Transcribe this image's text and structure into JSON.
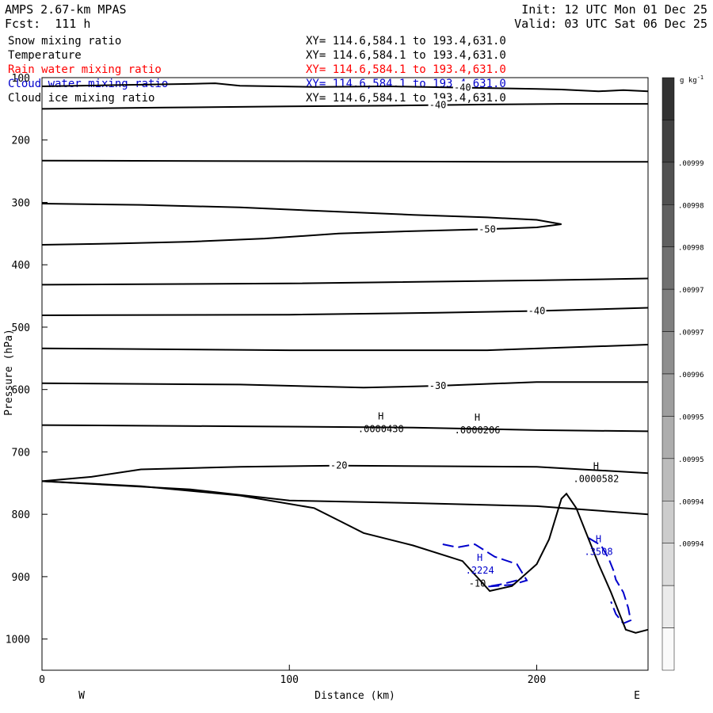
{
  "header": {
    "title": "AMPS 2.67-km MPAS",
    "forecast": "Fcst:  111 h",
    "init": "Init: 12 UTC Mon 01 Dec 25",
    "valid": "Valid: 03 UTC Sat 06 Dec 25"
  },
  "legend": [
    {
      "label": "Snow mixing ratio",
      "xy": "XY= 114.6,584.1 to 193.4,631.0",
      "color": "#000000"
    },
    {
      "label": "Temperature",
      "xy": "XY= 114.6,584.1 to 193.4,631.0",
      "color": "#000000"
    },
    {
      "label": "Rain water mixing ratio",
      "xy": "XY= 114.6,584.1 to 193.4,631.0",
      "color": "#ff0000"
    },
    {
      "label": "Cloud water mixing ratio",
      "xy": "XY= 114.6,584.1 to 193.4,631.0",
      "color": "#0000cc"
    },
    {
      "label": "Cloud ice mixing ratio",
      "xy": "XY= 114.6,584.1 to 193.4,631.0",
      "color": "#000000"
    }
  ],
  "chart_data": {
    "type": "cross-section contour",
    "xlabel": "Distance (km)",
    "ylabel": "Pressure (hPa)",
    "xlim": [
      0,
      245
    ],
    "ylim": [
      1050,
      100
    ],
    "x_ticks": [
      0,
      100,
      200
    ],
    "y_ticks": [
      100,
      200,
      300,
      400,
      500,
      600,
      700,
      800,
      900,
      1000
    ],
    "x_end_labels": {
      "left": "W",
      "right": "E"
    },
    "temperature_isotherms": [
      {
        "label": "-40",
        "points": [
          [
            0,
            114
          ],
          [
            30,
            112
          ],
          [
            60,
            110
          ],
          [
            70,
            109
          ],
          [
            80,
            113
          ],
          [
            110,
            115
          ],
          [
            140,
            114
          ],
          [
            170,
            116
          ],
          [
            200,
            118
          ],
          [
            210,
            119
          ],
          [
            225,
            122
          ],
          [
            235,
            120
          ],
          [
            245,
            122
          ]
        ]
      },
      {
        "label": "-40",
        "points": [
          [
            0,
            150
          ],
          [
            50,
            148
          ],
          [
            100,
            146
          ],
          [
            140,
            145
          ],
          [
            160,
            144
          ],
          [
            180,
            143
          ],
          [
            210,
            142
          ],
          [
            245,
            142
          ]
        ]
      },
      {
        "label": "",
        "points": [
          [
            0,
            233
          ],
          [
            100,
            234
          ],
          [
            200,
            235
          ],
          [
            245,
            235
          ]
        ]
      },
      {
        "label": "-50",
        "points": [
          [
            0,
            302
          ],
          [
            40,
            304
          ],
          [
            80,
            308
          ],
          [
            120,
            315
          ],
          [
            150,
            320
          ],
          [
            180,
            324
          ],
          [
            200,
            328
          ],
          [
            210,
            335
          ],
          [
            200,
            340
          ],
          [
            180,
            343
          ],
          [
            150,
            346
          ],
          [
            120,
            350
          ],
          [
            90,
            358
          ],
          [
            60,
            363
          ],
          [
            30,
            366
          ],
          [
            0,
            368
          ]
        ]
      },
      {
        "label": "",
        "points": [
          [
            0,
            432
          ],
          [
            100,
            430
          ],
          [
            200,
            425
          ],
          [
            245,
            422
          ]
        ]
      },
      {
        "label": "-40",
        "points": [
          [
            0,
            481
          ],
          [
            100,
            480
          ],
          [
            160,
            477
          ],
          [
            200,
            474
          ],
          [
            245,
            469
          ]
        ]
      },
      {
        "label": "",
        "points": [
          [
            0,
            534
          ],
          [
            100,
            537
          ],
          [
            180,
            537
          ],
          [
            245,
            528
          ]
        ]
      },
      {
        "label": "-30",
        "points": [
          [
            0,
            590
          ],
          [
            80,
            592
          ],
          [
            130,
            597
          ],
          [
            160,
            594
          ],
          [
            200,
            588
          ],
          [
            245,
            588
          ]
        ]
      },
      {
        "label": "",
        "points": [
          [
            0,
            657
          ],
          [
            80,
            659
          ],
          [
            150,
            661
          ],
          [
            200,
            665
          ],
          [
            245,
            667
          ]
        ]
      },
      {
        "label": "-20",
        "points": [
          [
            0,
            747
          ],
          [
            20,
            740
          ],
          [
            40,
            728
          ],
          [
            80,
            724
          ],
          [
            120,
            722
          ],
          [
            160,
            723
          ],
          [
            200,
            724
          ],
          [
            245,
            734
          ]
        ]
      },
      {
        "label": "",
        "points": [
          [
            0,
            747
          ],
          [
            60,
            760
          ],
          [
            100,
            778
          ],
          [
            150,
            782
          ],
          [
            200,
            787
          ],
          [
            245,
            800
          ]
        ]
      }
    ],
    "terrain": [
      [
        0,
        747
      ],
      [
        40,
        755
      ],
      [
        80,
        770
      ],
      [
        110,
        790
      ],
      [
        120,
        810
      ],
      [
        130,
        830
      ],
      [
        150,
        850
      ],
      [
        170,
        875
      ],
      [
        181,
        923
      ],
      [
        190,
        915
      ],
      [
        200,
        880
      ],
      [
        205,
        840
      ],
      [
        210,
        775
      ],
      [
        212,
        767
      ],
      [
        216,
        790
      ],
      [
        220,
        830
      ],
      [
        225,
        880
      ],
      [
        230,
        925
      ],
      [
        236,
        985
      ],
      [
        240,
        990
      ],
      [
        245,
        985
      ]
    ],
    "contour_labels": [
      {
        "text": "-10",
        "x": 176,
        "y": 911
      }
    ],
    "maxima": [
      {
        "text": ".0000430",
        "x": 137,
        "y": 663
      },
      {
        "text": ".0000206",
        "x": 176,
        "y": 665
      },
      {
        "text": ".0000582",
        "x": 224,
        "y": 743
      },
      {
        "text": ".2224",
        "x": 177,
        "y": 890
      },
      {
        "text": ".3508",
        "x": 225,
        "y": 860
      }
    ],
    "cloud_water_color": "#0000cc",
    "colorbar": {
      "unit": "g kg",
      "unit_superscript": "-1",
      "labels": [
        ".00999",
        ".00998",
        ".00998",
        ".00997",
        ".00997",
        ".00996",
        ".00995",
        ".00995",
        ".00994",
        ".00994"
      ]
    }
  }
}
